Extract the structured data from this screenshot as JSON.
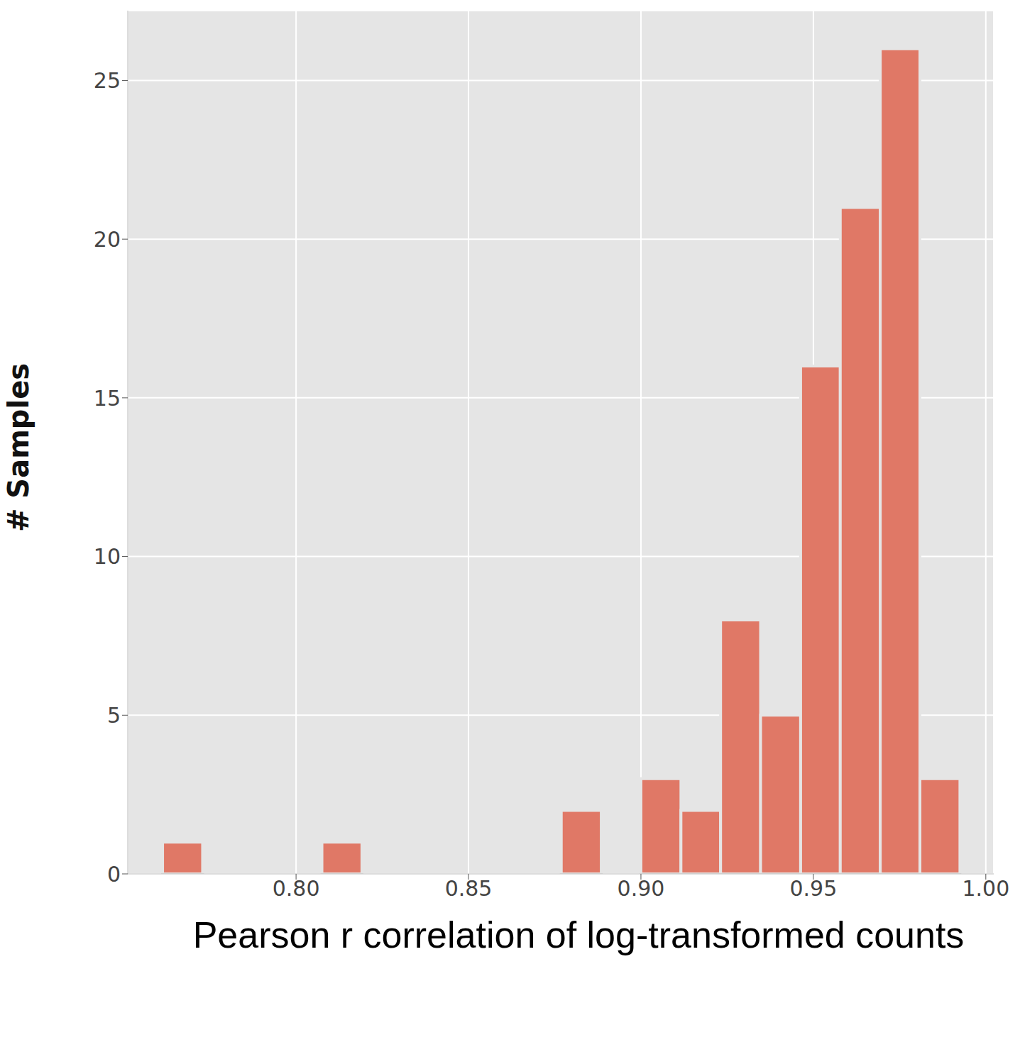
{
  "chart_data": {
    "type": "histogram",
    "x_label": "Pearson r correlation of log-transformed counts",
    "y_label": "# Samples",
    "bins": [
      0.7613,
      0.7729,
      0.7844,
      0.796,
      0.8075,
      0.8191,
      0.8307,
      0.8422,
      0.8538,
      0.8653,
      0.8769,
      0.8885,
      0.9,
      0.9116,
      0.9231,
      0.9347,
      0.9463,
      0.9578,
      0.9694,
      0.9809,
      0.9925
    ],
    "values": [
      1,
      0,
      0,
      0,
      1,
      0,
      0,
      0,
      0,
      0,
      2,
      0,
      3,
      2,
      8,
      5,
      16,
      21,
      26,
      3
    ],
    "color": "#e07866",
    "xlim": [
      0.7512,
      1.0023
    ],
    "ylim": [
      0,
      27.2
    ],
    "xticks": [
      {
        "value": 0.8,
        "label": "0.80"
      },
      0.85,
      {
        "value": 0.9,
        "label": "0.90"
      },
      0.95,
      {
        "value": 1.0,
        "label": "1.00"
      }
    ],
    "yticks": [
      0,
      5,
      10,
      15,
      20,
      25
    ],
    "grid": true
  }
}
